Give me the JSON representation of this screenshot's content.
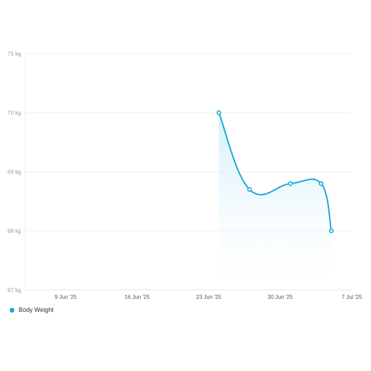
{
  "colors": {
    "series": "#1ca6da",
    "fill_top": "#cfeefb",
    "fill_bottom": "#ffffff"
  },
  "chart_data": {
    "type": "area",
    "title": "",
    "xlabel": "",
    "ylabel": "",
    "x_range": [
      "2025-06-05",
      "2025-07-07"
    ],
    "ylim": [
      67,
      71
    ],
    "y_ticks": [
      67,
      68,
      69,
      70,
      71
    ],
    "y_tick_labels": [
      "67 kg",
      "68 kg",
      "69 kg",
      "70 kg",
      "71 kg"
    ],
    "x_ticks": [
      "2025-06-09",
      "2025-06-16",
      "2025-06-23",
      "2025-06-30",
      "2025-07-07"
    ],
    "x_tick_labels": [
      "9 Jun '25",
      "16 Jun '25",
      "23 Jun '25",
      "30 Jun '25",
      "7 Jul '25"
    ],
    "grid": true,
    "legend_position": "bottom-left",
    "series": [
      {
        "name": "Body Weight",
        "x": [
          "2025-06-24",
          "2025-06-27",
          "2025-07-01",
          "2025-07-04",
          "2025-07-05"
        ],
        "values": [
          70.0,
          68.7,
          68.8,
          68.8,
          68.0
        ]
      }
    ]
  }
}
